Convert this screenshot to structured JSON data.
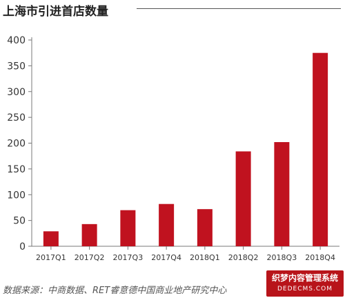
{
  "chart_data": {
    "type": "bar",
    "title": "上海市引进首店数量",
    "categories": [
      "2017Q1",
      "2017Q2",
      "2017Q3",
      "2017Q4",
      "2018Q1",
      "2018Q2",
      "2018Q3",
      "2018Q4"
    ],
    "values": [
      29,
      43,
      70,
      82,
      72,
      184,
      202,
      375
    ],
    "ylim": [
      0,
      400
    ],
    "yticks": [
      0,
      50,
      100,
      150,
      200,
      250,
      300,
      350,
      400
    ],
    "grid": false,
    "bar_color": "#c0121f"
  },
  "source": "数据来源：中商数据、RET睿意德中国商业地产研究中心",
  "watermark": {
    "line1": "织梦内容管理系统",
    "line2": "DEDECMS.COM"
  }
}
